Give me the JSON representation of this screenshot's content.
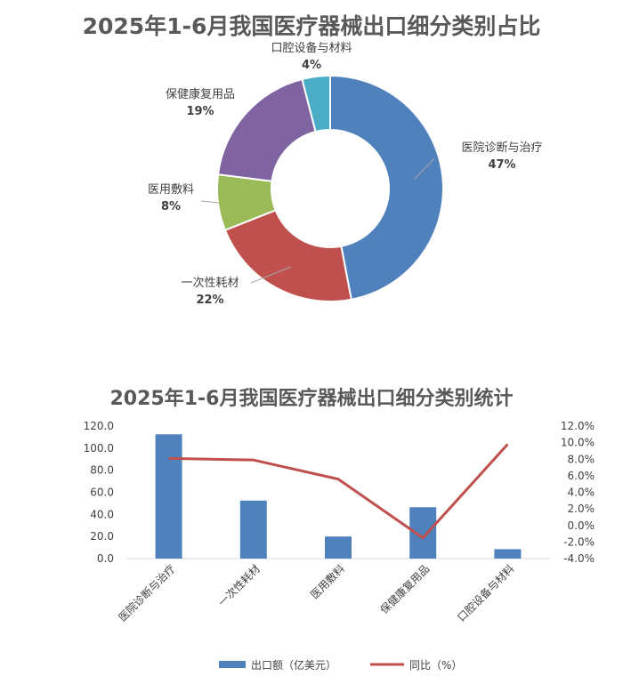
{
  "chart_data": [
    {
      "type": "pie",
      "title": "2025年1-6月我国医疗器械出口细分类别占比",
      "slices": [
        {
          "label": "医院诊断与治疗",
          "value": 47,
          "pct_label": "47%",
          "color": "#4f81bd"
        },
        {
          "label": "一次性耗材",
          "value": 22,
          "pct_label": "22%",
          "color": "#c0504d"
        },
        {
          "label": "医用敷料",
          "value": 8,
          "pct_label": "8%",
          "color": "#9bbb59"
        },
        {
          "label": "保健康复用品",
          "value": 19,
          "pct_label": "19%",
          "color": "#8064a2"
        },
        {
          "label": "口腔设备与材料",
          "value": 4,
          "pct_label": "4%",
          "color": "#4bacc6"
        }
      ],
      "start_angle_deg": 0,
      "direction": "clockwise"
    },
    {
      "type": "bar",
      "title": "2025年1-6月我国医疗器械出口细分类别统计",
      "categories": [
        "医院诊断与治疗",
        "一次性耗材",
        "医用敷料",
        "保健康复用品",
        "口腔设备与材料"
      ],
      "series": [
        {
          "name": "出口额（亿美元）",
          "kind": "bar",
          "axis": "left",
          "color": "#4f81bd",
          "values": [
            112.5,
            52.5,
            20.0,
            46.5,
            8.5
          ]
        },
        {
          "name": "同比（%）",
          "kind": "line",
          "axis": "right",
          "color": "#c0504d",
          "values": [
            8.1,
            7.9,
            5.6,
            -1.5,
            9.8
          ]
        }
      ],
      "ylim_left": [
        0,
        120
      ],
      "yticks_left": [
        "0.0",
        "20.0",
        "40.0",
        "60.0",
        "80.0",
        "100.0",
        "120.0"
      ],
      "ylim_right": [
        -4,
        12
      ],
      "yticks_right": [
        "-4.0%",
        "-2.0%",
        "0.0%",
        "2.0%",
        "4.0%",
        "6.0%",
        "8.0%",
        "10.0%",
        "12.0%"
      ],
      "grid": false,
      "legend_position": "bottom"
    }
  ]
}
